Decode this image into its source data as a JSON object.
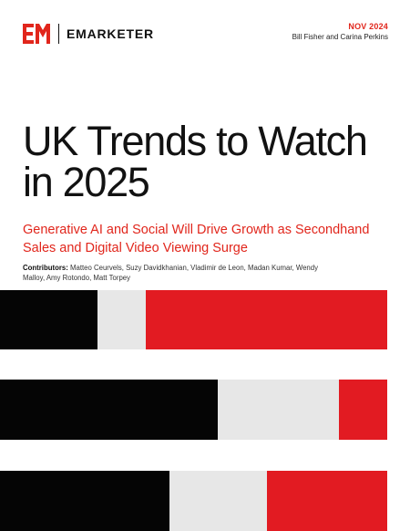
{
  "header": {
    "brand": "EMARKETER",
    "date": "NOV 2024",
    "authors": "Bill Fisher and Carina Perkins"
  },
  "cover": {
    "title": "UK Trends to Watch in 2025",
    "subtitle": "Generative AI and Social Will Drive Growth as Secondhand Sales and Digital Video Viewing Surge",
    "contributors_label": "Contributors:",
    "contributors": "Matteo Ceurvels, Suzy Davidkhanian, Vladimir de Leon, Madan Kumar, Wendy Malloy, Amy Rotondo, Matt Torpey"
  },
  "decorative_bars": [
    [
      "black",
      "gray",
      "red"
    ],
    [
      "black",
      "gray",
      "red"
    ],
    [
      "black",
      "gray",
      "red"
    ]
  ],
  "colors": {
    "brand_red": "#e1261c",
    "black": "#050505",
    "gray": "#e7e7e7",
    "text": "#111111"
  }
}
